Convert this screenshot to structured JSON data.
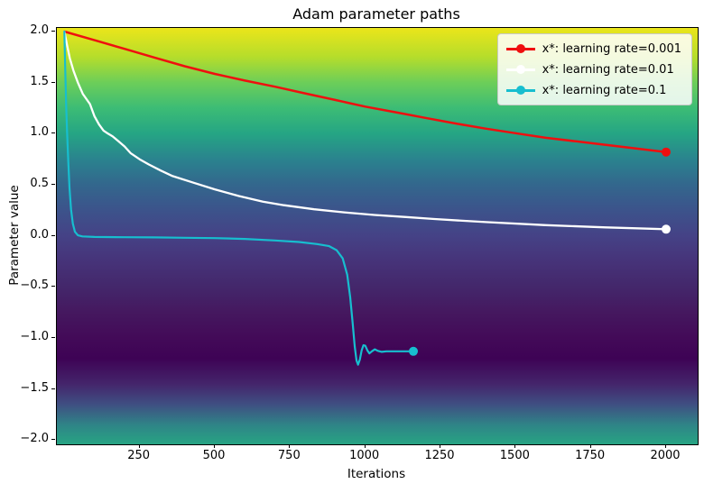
{
  "chart_data": {
    "type": "line",
    "title": "Adam parameter paths",
    "xlabel": "Iterations",
    "ylabel": "Parameter value",
    "xlim": [
      -25,
      2105
    ],
    "ylim": [
      -2.04,
      2.035
    ],
    "grid": false,
    "x_ticks": [
      250,
      500,
      750,
      1000,
      1250,
      1500,
      1750,
      2000
    ],
    "y_ticks": [
      {
        "v": 2.0,
        "label": "2.0"
      },
      {
        "v": 1.5,
        "label": "1.5"
      },
      {
        "v": 1.0,
        "label": "1.0"
      },
      {
        "v": 0.5,
        "label": "0.5"
      },
      {
        "v": 0.0,
        "label": "0.0"
      },
      {
        "v": -0.5,
        "label": "−0.5"
      },
      {
        "v": -1.0,
        "label": "−1.0"
      },
      {
        "v": -1.5,
        "label": "−1.5"
      },
      {
        "v": -2.0,
        "label": "−2.0"
      }
    ],
    "legend_position": "upper right",
    "background_gradient": {
      "description": "viridis colormap of objective value vs parameter value, vertical only; darkest band at minimum near parameter -1.2",
      "stops": [
        {
          "p": 2.035,
          "color": "#ebe51a"
        },
        {
          "p": 1.75,
          "color": "#b5dd2b"
        },
        {
          "p": 1.5,
          "color": "#6cce59"
        },
        {
          "p": 1.25,
          "color": "#3cbc75"
        },
        {
          "p": 1.0,
          "color": "#25a584"
        },
        {
          "p": 0.75,
          "color": "#2a838e"
        },
        {
          "p": 0.5,
          "color": "#33678d"
        },
        {
          "p": 0.25,
          "color": "#3c538b"
        },
        {
          "p": 0.0,
          "color": "#454286"
        },
        {
          "p": -0.25,
          "color": "#463379"
        },
        {
          "p": -0.5,
          "color": "#44276b"
        },
        {
          "p": -0.75,
          "color": "#45185f"
        },
        {
          "p": -1.0,
          "color": "#430a58"
        },
        {
          "p": -1.2,
          "color": "#3e0355"
        },
        {
          "p": -1.45,
          "color": "#44256b"
        },
        {
          "p": -1.65,
          "color": "#3f4f82"
        },
        {
          "p": -1.85,
          "color": "#2f8487"
        },
        {
          "p": -2.04,
          "color": "#27a483"
        }
      ]
    },
    "series": [
      {
        "name": "x*: learning rate=0.001",
        "color": "#ef0f0f",
        "linewidth": 2.5,
        "end_marker": [
          2000,
          0.82
        ],
        "points": [
          [
            0,
            2.0
          ],
          [
            100,
            1.915
          ],
          [
            200,
            1.83
          ],
          [
            300,
            1.745
          ],
          [
            400,
            1.66
          ],
          [
            500,
            1.585
          ],
          [
            600,
            1.52
          ],
          [
            700,
            1.46
          ],
          [
            800,
            1.395
          ],
          [
            900,
            1.33
          ],
          [
            1000,
            1.265
          ],
          [
            1100,
            1.21
          ],
          [
            1200,
            1.155
          ],
          [
            1300,
            1.1
          ],
          [
            1400,
            1.05
          ],
          [
            1500,
            1.005
          ],
          [
            1600,
            0.96
          ],
          [
            1700,
            0.925
          ],
          [
            1800,
            0.89
          ],
          [
            1900,
            0.855
          ],
          [
            2000,
            0.82
          ]
        ]
      },
      {
        "name": "x*: learning rate=0.01",
        "color": "#ffffff",
        "linewidth": 2.3,
        "end_marker": [
          2000,
          0.065
        ],
        "points": [
          [
            0,
            2.0
          ],
          [
            8,
            1.88
          ],
          [
            18,
            1.74
          ],
          [
            30,
            1.62
          ],
          [
            45,
            1.5
          ],
          [
            61,
            1.39
          ],
          [
            85,
            1.29
          ],
          [
            100,
            1.17
          ],
          [
            115,
            1.09
          ],
          [
            130,
            1.03
          ],
          [
            145,
            1.0
          ],
          [
            160,
            0.975
          ],
          [
            180,
            0.925
          ],
          [
            200,
            0.875
          ],
          [
            220,
            0.81
          ],
          [
            250,
            0.75
          ],
          [
            280,
            0.7
          ],
          [
            320,
            0.64
          ],
          [
            360,
            0.585
          ],
          [
            430,
            0.52
          ],
          [
            500,
            0.455
          ],
          [
            580,
            0.39
          ],
          [
            660,
            0.335
          ],
          [
            730,
            0.3
          ],
          [
            830,
            0.26
          ],
          [
            930,
            0.23
          ],
          [
            1030,
            0.205
          ],
          [
            1130,
            0.185
          ],
          [
            1230,
            0.165
          ],
          [
            1400,
            0.135
          ],
          [
            1600,
            0.105
          ],
          [
            1800,
            0.083
          ],
          [
            2000,
            0.065
          ]
        ]
      },
      {
        "name": "x*: learning rate=0.1",
        "color": "#17becf",
        "linewidth": 2.2,
        "end_marker": [
          1160,
          -1.13
        ],
        "points": [
          [
            0,
            2.0
          ],
          [
            3,
            1.62
          ],
          [
            6,
            1.28
          ],
          [
            9,
            1.02
          ],
          [
            13,
            0.72
          ],
          [
            17,
            0.47
          ],
          [
            22,
            0.26
          ],
          [
            28,
            0.12
          ],
          [
            35,
            0.04
          ],
          [
            45,
            0.005
          ],
          [
            60,
            -0.005
          ],
          [
            100,
            -0.01
          ],
          [
            200,
            -0.013
          ],
          [
            300,
            -0.015
          ],
          [
            400,
            -0.018
          ],
          [
            500,
            -0.022
          ],
          [
            600,
            -0.03
          ],
          [
            700,
            -0.045
          ],
          [
            780,
            -0.06
          ],
          [
            840,
            -0.08
          ],
          [
            880,
            -0.1
          ],
          [
            905,
            -0.14
          ],
          [
            925,
            -0.22
          ],
          [
            940,
            -0.38
          ],
          [
            950,
            -0.6
          ],
          [
            958,
            -0.85
          ],
          [
            965,
            -1.08
          ],
          [
            971,
            -1.22
          ],
          [
            976,
            -1.26
          ],
          [
            982,
            -1.21
          ],
          [
            988,
            -1.12
          ],
          [
            994,
            -1.07
          ],
          [
            1000,
            -1.075
          ],
          [
            1007,
            -1.12
          ],
          [
            1014,
            -1.15
          ],
          [
            1022,
            -1.13
          ],
          [
            1032,
            -1.11
          ],
          [
            1042,
            -1.125
          ],
          [
            1055,
            -1.135
          ],
          [
            1070,
            -1.13
          ],
          [
            1100,
            -1.13
          ],
          [
            1160,
            -1.13
          ]
        ]
      }
    ]
  }
}
